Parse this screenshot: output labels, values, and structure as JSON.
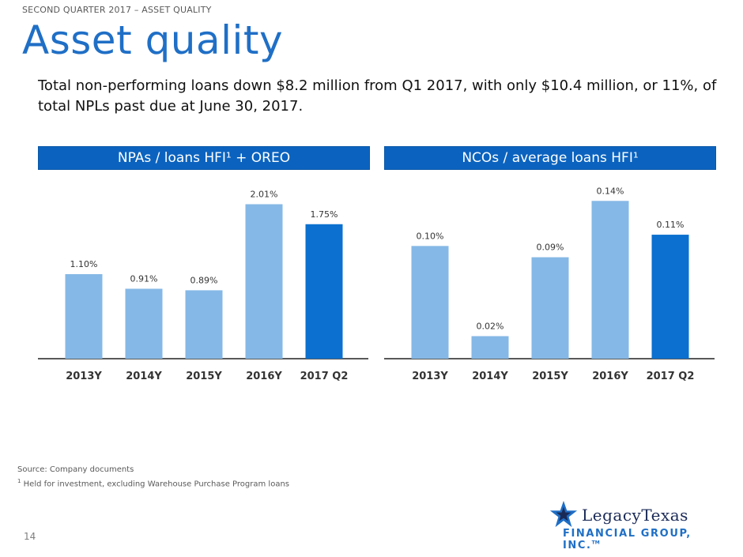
{
  "header": {
    "section_label": "SECOND QUARTER 2017 – ASSET QUALITY",
    "title": "Asset quality",
    "subtitle": "Total non-performing loans down $8.2 million from Q1 2017, with only $10.4 million, or 11%, of total NPLs past due at June 30, 2017."
  },
  "panels": [
    {
      "header": "NPAs / loans HFI¹ + OREO"
    },
    {
      "header": "NCOs / average loans HFI¹"
    }
  ],
  "chart_data": [
    {
      "type": "bar",
      "title": "NPAs / loans HFI¹ + OREO",
      "categories": [
        "2013Y",
        "2014Y",
        "2015Y",
        "2016Y",
        "2017 Q2"
      ],
      "values": [
        1.1,
        0.91,
        0.89,
        2.01,
        1.75
      ],
      "labels": [
        "1.10%",
        "0.91%",
        "0.89%",
        "2.01%",
        "1.75%"
      ],
      "ylim": [
        0,
        2.2
      ],
      "grid": false,
      "colors": {
        "bar": "#85b8e6",
        "highlight": "#0b70cf"
      },
      "highlight_index": 4
    },
    {
      "type": "bar",
      "title": "NCOs / average loans HFI¹",
      "categories": [
        "2013Y",
        "2014Y",
        "2015Y",
        "2016Y",
        "2017 Q2"
      ],
      "values": [
        0.1,
        0.02,
        0.09,
        0.14,
        0.11
      ],
      "labels": [
        "0.10%",
        "0.02%",
        "0.09%",
        "0.14%",
        "0.11%"
      ],
      "ylim": [
        0,
        0.15
      ],
      "grid": false,
      "colors": {
        "bar": "#85b8e6",
        "highlight": "#0b70cf"
      },
      "highlight_index": 4
    }
  ],
  "footnotes": {
    "source": "Source: Company documents",
    "note_marker": "1",
    "note": " Held for investment, excluding Warehouse Purchase Program loans"
  },
  "page_number": "14",
  "logo": {
    "line1": "LegacyTexas",
    "line2": "FINANCIAL GROUP, INC.",
    "tm": "TM",
    "icon": "star-icon"
  }
}
